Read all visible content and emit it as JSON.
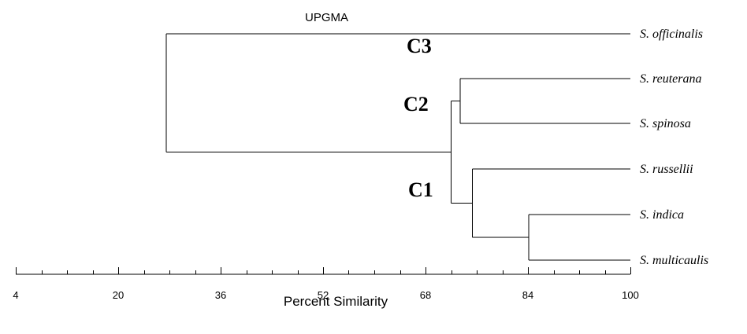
{
  "chart_data": {
    "type": "dendrogram",
    "title": "UPGMA",
    "xlabel": "Percent Similarity",
    "xlim": [
      4,
      100
    ],
    "xticks": [
      4,
      20,
      36,
      52,
      68,
      84,
      100
    ],
    "leaves": [
      "S. officinalis",
      "S. reuterana",
      "S. spinosa",
      "S. russellii",
      "S. indica",
      "S. multicaulis"
    ],
    "merges": [
      {
        "left": "S. indica",
        "right": "S. multicaulis",
        "similarity": 84.1
      },
      {
        "left": "S. russellii",
        "right": "S. indica + S. multicaulis",
        "similarity": 75.3
      },
      {
        "left": "S. reuterana",
        "right": "S. spinosa",
        "similarity": 73.4
      },
      {
        "left": "S. reuterana + S. spinosa",
        "right": "S. russellii + S. indica + S. multicaulis",
        "similarity": 72.0
      },
      {
        "left": "S. officinalis",
        "right": "all others",
        "similarity": 27.5
      }
    ],
    "cluster_labels": [
      "C3",
      "C2",
      "C1"
    ]
  }
}
